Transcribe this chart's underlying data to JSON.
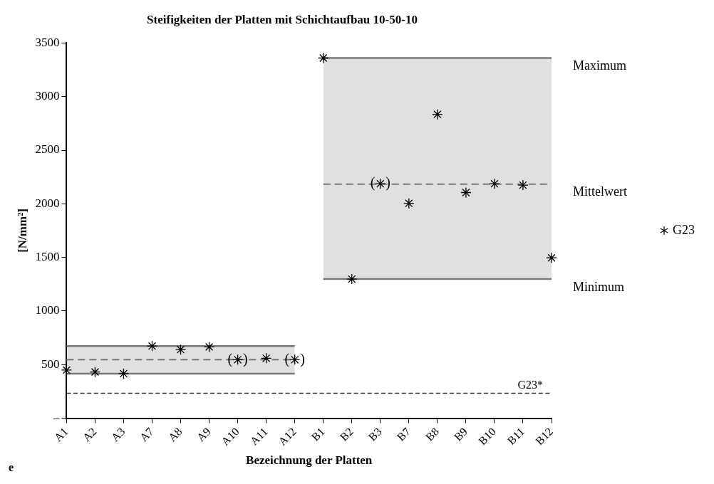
{
  "chart_data": {
    "type": "scatter",
    "title": "Steifigkeiten der Platten mit Schichtaufbau 10-50-10",
    "xlabel": "Bezeichnung der Platten",
    "ylabel": "[N/mm²]",
    "categories": [
      "A1",
      "A2",
      "A3",
      "A7",
      "A8",
      "A9",
      "A10",
      "A11",
      "A12",
      "B1",
      "B2",
      "B3",
      "B7",
      "B8",
      "B9",
      "B10",
      "B11",
      "B12"
    ],
    "series": [
      {
        "name": "G23",
        "color": "#000000",
        "marker": "cross",
        "values": [
          449,
          431,
          416,
          673,
          640,
          665,
          546,
          559,
          546,
          3360,
          1298,
          2187,
          2004,
          2834,
          2105,
          2187,
          2174,
          1496
        ]
      },
      {
        "type": "line",
        "color": "#777777",
        "line_style": "solid",
        "values": [
          673,
          673,
          673,
          673,
          673,
          673,
          673,
          673,
          673,
          null,
          null,
          null,
          null,
          null,
          null,
          null,
          null,
          null
        ]
      },
      {
        "type": "line",
        "color": "#777777",
        "line_style": "solid",
        "values": [
          416,
          416,
          416,
          416,
          416,
          416,
          416,
          416,
          416,
          null,
          null,
          null,
          null,
          null,
          null,
          null,
          null,
          null
        ]
      },
      {
        "type": "line",
        "color": "#777777",
        "line_style": "dashed",
        "values": [
          546,
          546,
          546,
          546,
          546,
          546,
          546,
          546,
          546,
          null,
          null,
          null,
          null,
          null,
          null,
          null,
          null,
          null
        ],
        "lower": [
          416,
          416,
          416,
          416,
          416,
          416,
          416,
          416,
          416,
          null,
          null,
          null,
          null,
          null,
          null,
          null,
          null,
          null
        ],
        "upper": [
          673,
          673,
          673,
          673,
          673,
          673,
          673,
          673,
          673,
          null,
          null,
          null,
          null,
          null,
          null,
          null,
          null,
          null
        ]
      },
      {
        "name": "Maximum",
        "type": "line",
        "color": "#777777",
        "line_style": "solid",
        "values": [
          null,
          null,
          null,
          null,
          null,
          null,
          null,
          null,
          null,
          3360,
          3360,
          3360,
          3360,
          3360,
          3360,
          3360,
          3360,
          3360
        ]
      },
      {
        "name": "Mittelwert",
        "type": "line",
        "color": "#777777",
        "line_style": "dashed",
        "values": [
          null,
          null,
          null,
          null,
          null,
          null,
          null,
          null,
          null,
          2183,
          2183,
          2183,
          2183,
          2183,
          2183,
          2183,
          2183,
          2183
        ],
        "lower": [
          null,
          null,
          null,
          null,
          null,
          null,
          null,
          null,
          null,
          1298,
          1298,
          1298,
          1298,
          1298,
          1298,
          1298,
          1298,
          1298
        ],
        "upper": [
          null,
          null,
          null,
          null,
          null,
          null,
          null,
          null,
          null,
          3360,
          3360,
          3360,
          3360,
          3360,
          3360,
          3360,
          3360,
          3360
        ]
      },
      {
        "name": "Minimum",
        "type": "line",
        "color": "#777777",
        "line_style": "solid",
        "values": [
          null,
          null,
          null,
          null,
          null,
          null,
          null,
          null,
          null,
          1298,
          1298,
          1298,
          1298,
          1298,
          1298,
          1298,
          1298,
          1298
        ]
      }
    ],
    "ref_lines": [
      {
        "axis": "y",
        "value": 233,
        "label": "G23*",
        "color": "#333333",
        "line_style": "dashed"
      }
    ],
    "annotations": [
      {
        "text": "(   )",
        "x": "A10",
        "y": 546
      },
      {
        "text": "(   )",
        "x": "A12",
        "y": 546
      },
      {
        "text": "(   )",
        "x": "B3",
        "y": 2187
      },
      "e"
    ],
    "ylim": [
      0,
      3500
    ],
    "yticks": [
      {
        "value": 0,
        "label": "–"
      },
      500,
      1000,
      1500,
      2000,
      2500,
      3000,
      3500
    ],
    "grid": false,
    "legend": "right"
  }
}
